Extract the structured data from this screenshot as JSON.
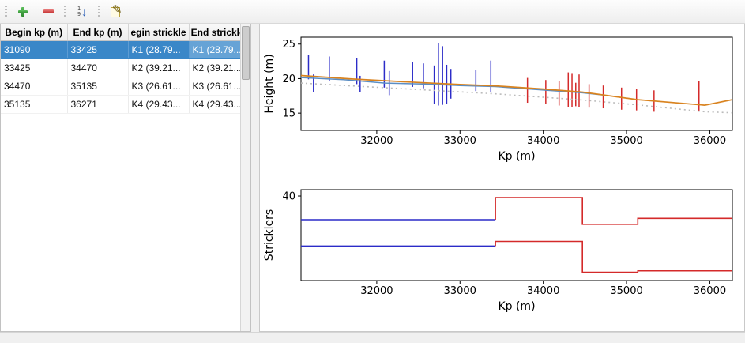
{
  "toolbar": {
    "buttons": [
      {
        "name": "add",
        "tooltip": "add"
      },
      {
        "name": "remove",
        "tooltip": "remove"
      },
      {
        "name": "sort",
        "digit_top": "1",
        "digit_bottom": "9",
        "arrow": "↓"
      },
      {
        "name": "edit",
        "glyph": "✎"
      }
    ]
  },
  "table": {
    "columns": [
      "Begin kp (m)",
      "End kp (m)",
      "egin strickle",
      "End strickler"
    ],
    "rows": [
      [
        "31090",
        "33425",
        "K1 (28.79...",
        "K1 (28.79..."
      ],
      [
        "33425",
        "34470",
        "K2 (39.21...",
        "K2 (39.21..."
      ],
      [
        "34470",
        "35135",
        "K3 (26.61...",
        "K3 (26.61..."
      ],
      [
        "35135",
        "36271",
        "K4 (29.43...",
        "K4 (29.43..."
      ]
    ],
    "selected_row_index": 0
  },
  "colors": {
    "selected_segment": "#2c2cc8",
    "other_segment": "#d42a2a",
    "profile_main": "#d9831f",
    "profile_secondary": "#5b8ec4",
    "profile_dotted": "#bbbbbb",
    "row_highlight": "#3a87c8"
  },
  "chart_data": [
    {
      "type": "line",
      "title": "",
      "xlabel": "Kp (m)",
      "ylabel": "Height (m)",
      "xlim": [
        31090,
        36271
      ],
      "ylim": [
        12.5,
        26
      ],
      "xticks": [
        32000,
        33000,
        34000,
        35000,
        36000
      ],
      "yticks": [
        15,
        20,
        25
      ],
      "grid": false,
      "vlines": [
        {
          "name": "selected-segment-sections",
          "color": "#2c2cc8",
          "data": [
            [
              31180,
              19.9,
              23.4
            ],
            [
              31240,
              18.0,
              20.6
            ],
            [
              31430,
              19.6,
              23.2
            ],
            [
              31760,
              19.2,
              23.0
            ],
            [
              31800,
              18.1,
              20.4
            ],
            [
              32090,
              18.7,
              22.6
            ],
            [
              32150,
              17.6,
              21.1
            ],
            [
              32430,
              18.8,
              22.4
            ],
            [
              32560,
              18.6,
              22.2
            ],
            [
              32690,
              16.3,
              21.9
            ],
            [
              32740,
              16.1,
              25.1
            ],
            [
              32790,
              16.2,
              24.7
            ],
            [
              32840,
              16.3,
              22.0
            ],
            [
              32890,
              17.1,
              21.4
            ],
            [
              33190,
              18.2,
              21.2
            ],
            [
              33370,
              18.0,
              22.6
            ]
          ]
        },
        {
          "name": "other-segment-sections",
          "color": "#d42a2a",
          "data": [
            [
              33810,
              16.5,
              20.1
            ],
            [
              34030,
              16.3,
              19.8
            ],
            [
              34190,
              16.1,
              19.6
            ],
            [
              34300,
              15.9,
              20.9
            ],
            [
              34345,
              15.9,
              20.8
            ],
            [
              34390,
              16.0,
              19.4
            ],
            [
              34430,
              15.9,
              20.6
            ],
            [
              34550,
              15.8,
              19.2
            ],
            [
              34720,
              15.7,
              19.0
            ],
            [
              34940,
              15.5,
              18.7
            ],
            [
              35120,
              15.4,
              18.5
            ],
            [
              35330,
              15.2,
              18.3
            ],
            [
              35870,
              15.3,
              19.6
            ]
          ]
        }
      ],
      "series": [
        {
          "name": "profile-secondary",
          "color": "#5b8ec4",
          "width": 1.5,
          "dash": "",
          "points": [
            [
              31090,
              20.15
            ],
            [
              31600,
              19.85
            ],
            [
              32100,
              19.35
            ],
            [
              32600,
              19.2
            ],
            [
              33000,
              19.0
            ],
            [
              33425,
              18.85
            ],
            [
              34000,
              18.35
            ],
            [
              34470,
              17.95
            ],
            [
              34740,
              17.6
            ]
          ]
        },
        {
          "name": "profile-main",
          "color": "#d9831f",
          "width": 1.7,
          "dash": "",
          "points": [
            [
              31090,
              20.45
            ],
            [
              31700,
              19.95
            ],
            [
              32400,
              19.5
            ],
            [
              33000,
              19.15
            ],
            [
              33425,
              18.95
            ],
            [
              34000,
              18.5
            ],
            [
              34470,
              18.05
            ],
            [
              35135,
              16.95
            ],
            [
              35940,
              16.15
            ],
            [
              36271,
              16.95
            ]
          ]
        },
        {
          "name": "profile-dotted",
          "color": "#bbbbbb",
          "width": 1.6,
          "dash": "2 4",
          "points": [
            [
              31090,
              19.35
            ],
            [
              33425,
              17.8
            ],
            [
              34470,
              16.9
            ],
            [
              35135,
              16.2
            ],
            [
              35940,
              15.2
            ],
            [
              36271,
              15.05
            ]
          ]
        }
      ]
    },
    {
      "type": "line",
      "title": "",
      "xlabel": "Kp (m)",
      "ylabel": "Stricklers",
      "xlim": [
        31090,
        36271
      ],
      "ylim": [
        0,
        43
      ],
      "xticks": [
        32000,
        33000,
        34000,
        35000,
        36000
      ],
      "yticks": [
        40
      ],
      "grid": false,
      "series": [
        {
          "name": "selected-strickler-major",
          "color": "#2c2cc8",
          "width": 1.6,
          "dash": "",
          "points": [
            [
              31090,
              28.79
            ],
            [
              33425,
              28.79
            ]
          ]
        },
        {
          "name": "selected-strickler-minor",
          "color": "#2c2cc8",
          "width": 1.6,
          "dash": "",
          "points": [
            [
              31090,
              16.3
            ],
            [
              33425,
              16.3
            ]
          ]
        },
        {
          "name": "other-strickler-major",
          "color": "#d42a2a",
          "width": 1.6,
          "dash": "",
          "points": [
            [
              33425,
              28.79
            ],
            [
              33425,
              39.21
            ],
            [
              34470,
              39.21
            ],
            [
              34470,
              26.61
            ],
            [
              35135,
              26.61
            ],
            [
              35135,
              29.43
            ],
            [
              36271,
              29.43
            ]
          ]
        },
        {
          "name": "other-strickler-minor",
          "color": "#d42a2a",
          "width": 1.6,
          "dash": "",
          "points": [
            [
              33425,
              16.3
            ],
            [
              33425,
              18.5
            ],
            [
              34470,
              18.5
            ],
            [
              34470,
              3.9
            ],
            [
              35135,
              3.9
            ],
            [
              35135,
              4.6
            ],
            [
              36271,
              4.6
            ]
          ]
        }
      ]
    }
  ]
}
